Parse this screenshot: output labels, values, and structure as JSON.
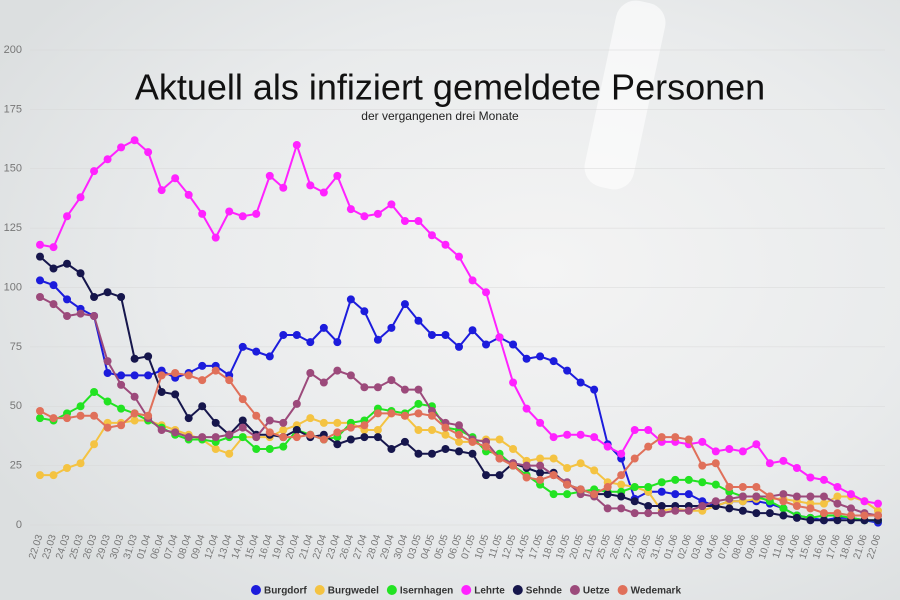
{
  "chart_data": {
    "type": "line",
    "title": "Aktuell als infiziert gemeldete Personen",
    "subtitle": "der vergangenen drei Monate",
    "categories": [
      "22.03",
      "23.03",
      "24.03",
      "25.03",
      "26.03",
      "29.03",
      "30.03",
      "31.03",
      "01.04",
      "06.04",
      "07.04",
      "08.04",
      "09.04",
      "12.04",
      "13.04",
      "14.04",
      "15.04",
      "16.04",
      "19.04",
      "20.04",
      "21.04",
      "22.04",
      "23.04",
      "26.04",
      "27.04",
      "28.04",
      "29.04",
      "30.04",
      "03.05",
      "04.05",
      "05.05",
      "06.05",
      "07.05",
      "10.05",
      "11.05",
      "12.05",
      "14.05",
      "17.05",
      "18.05",
      "19.05",
      "20.05",
      "21.05",
      "25.05",
      "26.05",
      "27.05",
      "28.05",
      "31.05",
      "01.06",
      "02.06",
      "03.06",
      "04.06",
      "07.06",
      "08.06",
      "09.06",
      "10.06",
      "11.06",
      "14.06",
      "15.06",
      "16.06",
      "17.06",
      "18.06",
      "21.06",
      "22.06"
    ],
    "series": [
      {
        "name": "Burgdorf",
        "color": "#1c1cdc",
        "values": [
          103,
          101,
          95,
          91,
          88,
          64,
          63,
          63,
          63,
          65,
          62,
          64,
          67,
          67,
          63,
          75,
          73,
          71,
          80,
          80,
          77,
          83,
          77,
          95,
          90,
          78,
          83,
          93,
          86,
          80,
          80,
          75,
          82,
          76,
          79,
          76,
          70,
          71,
          69,
          65,
          60,
          57,
          34,
          28,
          11,
          14,
          14,
          13,
          13,
          10,
          8,
          10,
          10,
          10,
          9,
          7,
          4,
          3,
          2,
          3,
          3,
          2,
          1
        ]
      },
      {
        "name": "Burgwedel",
        "color": "#f4c342",
        "values": [
          21,
          21,
          24,
          26,
          34,
          43,
          43,
          44,
          44,
          42,
          40,
          38,
          36,
          32,
          30,
          37,
          37,
          37,
          40,
          42,
          45,
          43,
          43,
          43,
          40,
          40,
          47,
          46,
          40,
          40,
          38,
          35,
          35,
          36,
          36,
          32,
          27,
          28,
          28,
          24,
          26,
          23,
          18,
          17,
          16,
          14,
          6,
          7,
          6,
          6,
          8,
          10,
          10,
          11,
          11,
          11,
          10,
          9,
          9,
          12,
          12,
          10,
          6
        ]
      },
      {
        "name": "Isernhagen",
        "color": "#22e322",
        "values": [
          45,
          44,
          47,
          50,
          56,
          52,
          49,
          47,
          44,
          41,
          38,
          36,
          36,
          35,
          37,
          37,
          32,
          32,
          33,
          40,
          38,
          36,
          37,
          43,
          44,
          49,
          48,
          47,
          51,
          50,
          41,
          40,
          37,
          31,
          30,
          25,
          21,
          17,
          13,
          13,
          14,
          15,
          14,
          14,
          16,
          16,
          18,
          19,
          19,
          18,
          17,
          14,
          12,
          12,
          10,
          7,
          4,
          3,
          4,
          4,
          3,
          2,
          2
        ]
      },
      {
        "name": "Lehrte",
        "color": "#ff22ff",
        "values": [
          118,
          117,
          130,
          138,
          149,
          154,
          159,
          162,
          157,
          141,
          146,
          139,
          131,
          121,
          132,
          130,
          131,
          147,
          142,
          160,
          143,
          140,
          147,
          133,
          130,
          131,
          135,
          128,
          128,
          122,
          118,
          113,
          103,
          98,
          79,
          60,
          49,
          43,
          37,
          38,
          38,
          37,
          33,
          30,
          40,
          40,
          35,
          35,
          34,
          35,
          31,
          32,
          31,
          34,
          26,
          27,
          24,
          20,
          19,
          16,
          13,
          10,
          9
        ]
      },
      {
        "name": "Sehnde",
        "color": "#16164c",
        "values": [
          113,
          108,
          110,
          106,
          96,
          98,
          96,
          70,
          71,
          56,
          55,
          45,
          50,
          43,
          38,
          44,
          38,
          38,
          37,
          40,
          37,
          38,
          34,
          36,
          37,
          37,
          32,
          35,
          30,
          30,
          32,
          31,
          30,
          21,
          21,
          26,
          24,
          22,
          22,
          17,
          15,
          13,
          13,
          12,
          10,
          8,
          8,
          8,
          8,
          8,
          8,
          7,
          6,
          5,
          5,
          4,
          3,
          2,
          2,
          2,
          2,
          2,
          2
        ]
      },
      {
        "name": "Uetze",
        "color": "#9c4a7b",
        "values": [
          96,
          93,
          88,
          89,
          88,
          69,
          59,
          54,
          45,
          40,
          39,
          37,
          37,
          37,
          38,
          41,
          37,
          44,
          43,
          51,
          64,
          60,
          65,
          63,
          58,
          58,
          61,
          57,
          57,
          48,
          43,
          42,
          36,
          35,
          28,
          26,
          25,
          25,
          21,
          18,
          13,
          12,
          7,
          7,
          5,
          5,
          5,
          6,
          6,
          8,
          10,
          11,
          12,
          12,
          12,
          13,
          12,
          12,
          12,
          9,
          7,
          5,
          4
        ]
      },
      {
        "name": "Wedemark",
        "color": "#e0705a",
        "values": [
          48,
          45,
          45,
          46,
          46,
          41,
          42,
          47,
          46,
          63,
          64,
          63,
          61,
          65,
          61,
          53,
          46,
          39,
          37,
          37,
          38,
          36,
          39,
          41,
          42,
          47,
          47,
          46,
          47,
          46,
          41,
          38,
          35,
          33,
          28,
          25,
          20,
          19,
          21,
          17,
          15,
          13,
          16,
          21,
          28,
          33,
          37,
          37,
          36,
          25,
          26,
          16,
          16,
          16,
          12,
          10,
          8,
          7,
          5,
          5,
          4,
          4,
          4
        ]
      }
    ],
    "ylim": [
      0,
      200
    ],
    "yticks": [
      0,
      25,
      50,
      75,
      100,
      125,
      150,
      175,
      200
    ],
    "grid": true,
    "legend": "bottom"
  }
}
